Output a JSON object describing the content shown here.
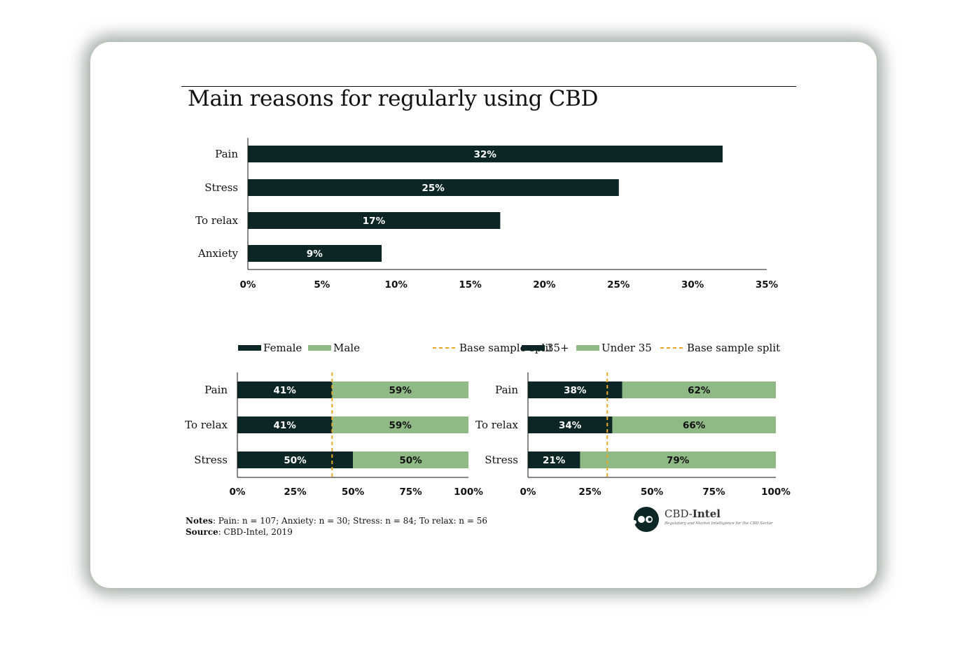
{
  "title": "Main reasons for regularly using CBD",
  "colors": {
    "dark": "#0c2626",
    "light": "#8fba85",
    "split": "#e8a928",
    "axis": "#111111"
  },
  "chart_data": [
    {
      "type": "bar",
      "orientation": "horizontal",
      "categories": [
        "Pain",
        "Stress",
        "To relax",
        "Anxiety"
      ],
      "values": [
        32,
        25,
        17,
        9
      ],
      "value_labels": [
        "32%",
        "25%",
        "17%",
        "9%"
      ],
      "xlim": [
        0,
        35
      ],
      "xticks": [
        "0%",
        "5%",
        "10%",
        "15%",
        "20%",
        "25%",
        "30%",
        "35%"
      ]
    },
    {
      "type": "bar",
      "orientation": "horizontal",
      "stacked": true,
      "categories": [
        "Pain",
        "To relax",
        "Stress"
      ],
      "series": [
        {
          "name": "Female",
          "values": [
            41,
            41,
            50
          ],
          "labels": [
            "41%",
            "41%",
            "50%"
          ]
        },
        {
          "name": "Male",
          "values": [
            59,
            59,
            50
          ],
          "labels": [
            "59%",
            "59%",
            "50%"
          ]
        }
      ],
      "reference_line": {
        "name": "Base sample split",
        "value": 41
      },
      "xlim": [
        0,
        100
      ],
      "xticks": [
        "0%",
        "25%",
        "50%",
        "75%",
        "100%"
      ],
      "legend": "top"
    },
    {
      "type": "bar",
      "orientation": "horizontal",
      "stacked": true,
      "categories": [
        "Pain",
        "To relax",
        "Stress"
      ],
      "series": [
        {
          "name": "35+",
          "values": [
            38,
            34,
            21
          ],
          "labels": [
            "38%",
            "34%",
            "21%"
          ]
        },
        {
          "name": "Under 35",
          "values": [
            62,
            66,
            79
          ],
          "labels": [
            "62%",
            "66%",
            "79%"
          ]
        }
      ],
      "reference_line": {
        "name": "Base sample split",
        "value": 32
      },
      "xlim": [
        0,
        100
      ],
      "xticks": [
        "0%",
        "25%",
        "50%",
        "75%",
        "100%"
      ],
      "legend": "top"
    }
  ],
  "notes": {
    "label": "Notes",
    "text": ": Pain: n = 107; Anxiety: n = 30; Stress: n = 84; To relax: n = 56"
  },
  "source": {
    "label": "Source",
    "text": ": CBD-Intel, 2019"
  },
  "logo": {
    "name_prefix": "CBD-",
    "name_bold": "Intel",
    "tagline": "Regulatory and Market Intelligence for the CBD Sector"
  }
}
